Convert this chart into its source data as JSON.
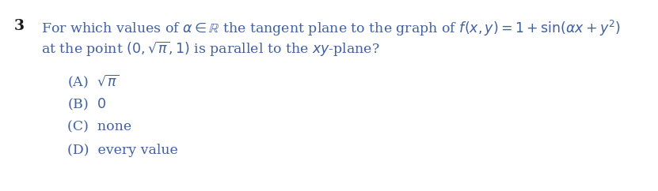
{
  "bg_color": "#ffffff",
  "text_color": "#1a1a1a",
  "blue_color": "#4060a0",
  "question_number": "3",
  "question_text_line1": "For which values of $\\alpha \\in \\mathbb{R}$ the tangent plane to the graph of $f(x, y) = 1 + \\sin(\\alpha x + y^2)$",
  "question_text_line2": "at the point $(0, \\sqrt{\\pi}, 1)$ is parallel to the $xy$-plane?",
  "options": [
    "(A)  $\\sqrt{\\pi}$",
    "(B)  $0$",
    "(C)  none",
    "(D)  every value"
  ],
  "fig_width": 8.31,
  "fig_height": 2.42,
  "dpi": 100,
  "font_size": 12.5
}
